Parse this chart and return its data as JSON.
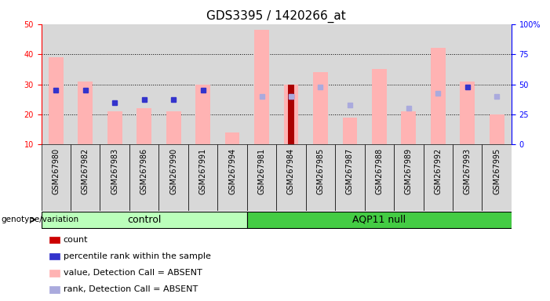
{
  "title": "GDS3395 / 1420266_at",
  "samples": [
    "GSM267980",
    "GSM267982",
    "GSM267983",
    "GSM267986",
    "GSM267990",
    "GSM267991",
    "GSM267994",
    "GSM267981",
    "GSM267984",
    "GSM267985",
    "GSM267987",
    "GSM267988",
    "GSM267989",
    "GSM267992",
    "GSM267993",
    "GSM267995"
  ],
  "n_control": 7,
  "n_aqp": 9,
  "pink_bar_values": [
    39,
    31,
    21,
    22,
    21,
    30,
    14,
    48,
    30,
    34,
    19,
    35,
    21,
    42,
    31,
    20
  ],
  "red_bar_values": [
    0,
    0,
    0,
    0,
    0,
    0,
    0,
    0,
    30,
    0,
    0,
    0,
    0,
    0,
    0,
    0
  ],
  "blue_square_y": [
    28,
    28,
    24,
    25,
    25,
    28,
    0,
    0,
    26,
    0,
    0,
    0,
    0,
    0,
    29,
    0
  ],
  "lavender_square_y": [
    0,
    0,
    0,
    0,
    0,
    0,
    0,
    26,
    26,
    29,
    23,
    0,
    22,
    27,
    0,
    26
  ],
  "ylim_left": [
    10,
    50
  ],
  "y_ticks_left": [
    10,
    20,
    30,
    40,
    50
  ],
  "y_ticks_right_labels": [
    "0",
    "25",
    "50",
    "75",
    "100%"
  ],
  "legend_items": [
    "count",
    "percentile rank within the sample",
    "value, Detection Call = ABSENT",
    "rank, Detection Call = ABSENT"
  ],
  "legend_colors": [
    "#cc0000",
    "#3333cc",
    "#ffb3b3",
    "#aaaadd"
  ],
  "group_label": "genotype/variation",
  "group_names": [
    "control",
    "AQP11 null"
  ],
  "ctrl_color": "#bbffbb",
  "aqp_color": "#44cc44",
  "background_color": "#ffffff",
  "bar_area_bg": "#d8d8d8",
  "pink_bar_color": "#ffb3b3",
  "red_bar_color": "#aa0000",
  "blue_sq_color": "#3333cc",
  "lavender_sq_color": "#aaaadd",
  "title_fontsize": 11,
  "tick_fontsize": 7,
  "legend_fontsize": 8
}
